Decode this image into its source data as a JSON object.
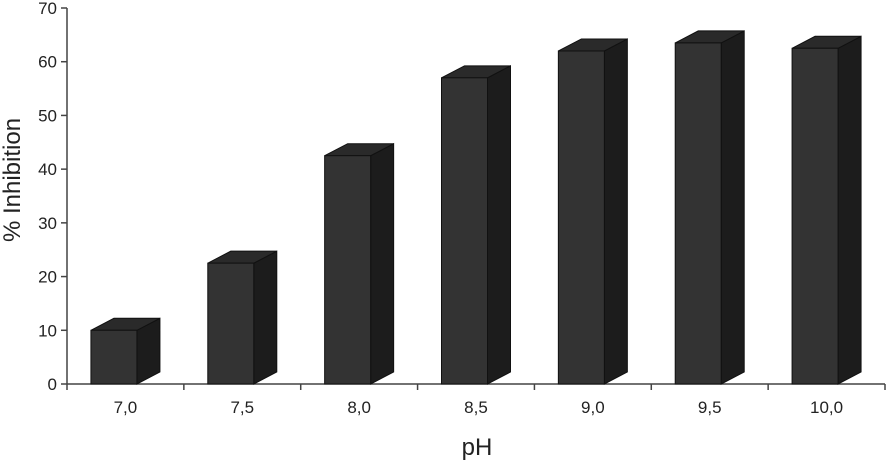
{
  "chart_data": {
    "type": "bar",
    "style": "3d-column",
    "categories": [
      "7,0",
      "7,5",
      "8,0",
      "8,5",
      "9,0",
      "9,5",
      "10,0"
    ],
    "values": [
      10,
      22.5,
      42.5,
      57,
      62,
      63.5,
      62.5
    ],
    "xlabel": "pH",
    "ylabel": "% Inhibition",
    "ylim": [
      0,
      70
    ],
    "yticks": [
      0,
      10,
      20,
      30,
      40,
      50,
      60,
      70
    ],
    "grid": false,
    "legend": "none",
    "colors": {
      "bar_front": "#333333",
      "bar_top": "#2a2a2a",
      "bar_side": "#1c1c1c",
      "bar_edge": "#111111",
      "axis": "#444444"
    }
  }
}
